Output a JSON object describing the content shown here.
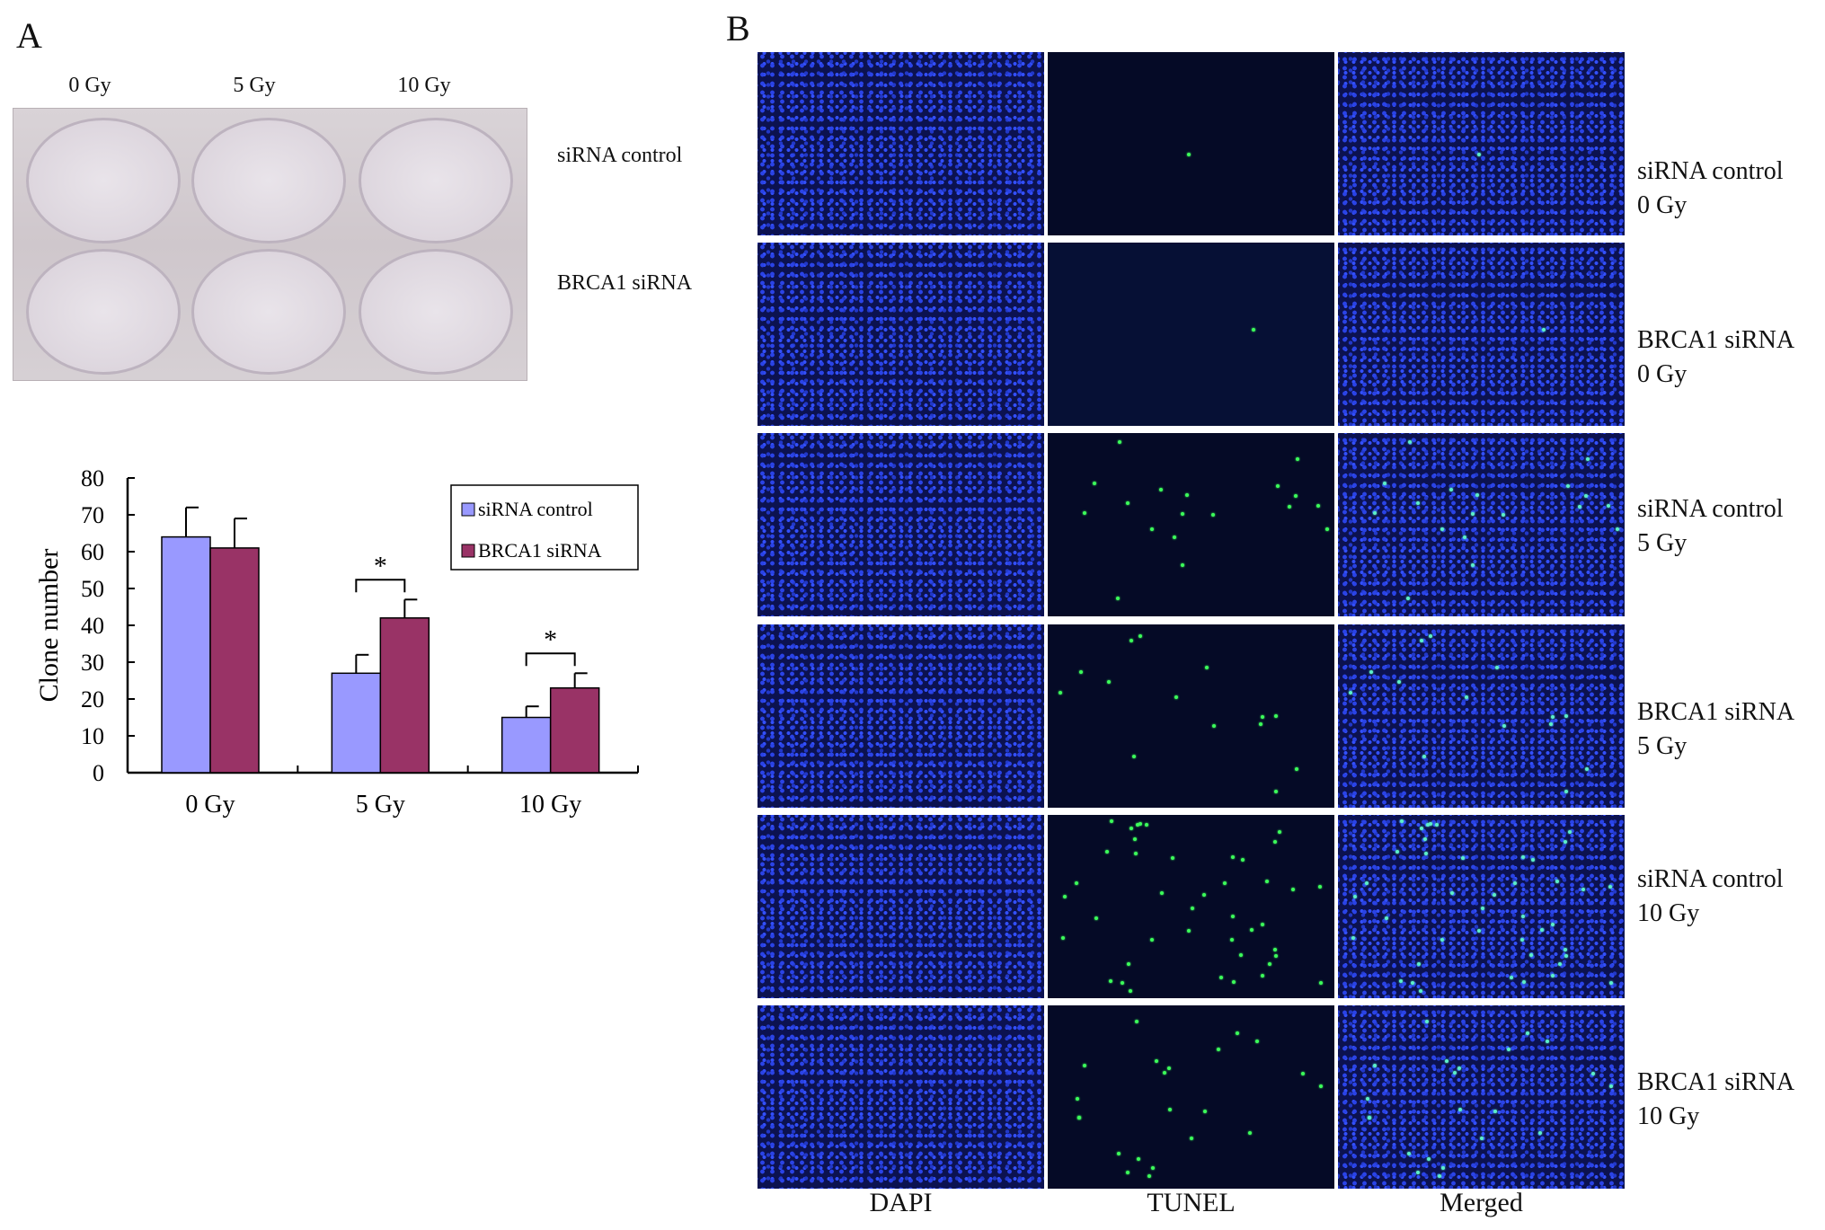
{
  "panel_a": {
    "letter": "A",
    "plate_column_labels": [
      "0 Gy",
      "5 Gy",
      "10 Gy"
    ],
    "plate_row_labels": [
      "siRNA control",
      "BRCA1 siRNA"
    ]
  },
  "panel_b": {
    "letter": "B",
    "column_labels": [
      "DAPI",
      "TUNEL",
      "Merged"
    ],
    "rows": [
      {
        "line1": "siRNA control",
        "line2": "0 Gy"
      },
      {
        "line1": "BRCA1 siRNA",
        "line2": "0 Gy"
      },
      {
        "line1": "siRNA control",
        "line2": "5 Gy"
      },
      {
        "line1": "BRCA1 siRNA",
        "line2": "5 Gy"
      },
      {
        "line1": "siRNA control",
        "line2": "10 Gy"
      },
      {
        "line1": "BRCA1 siRNA",
        "line2": "10 Gy"
      }
    ]
  },
  "chart_data": {
    "type": "bar",
    "categories": [
      "0 Gy",
      "5 Gy",
      "10 Gy"
    ],
    "series": [
      {
        "name": "siRNA control",
        "values": [
          64,
          27,
          15
        ],
        "errors": [
          8,
          5,
          3
        ],
        "color": "#9999ff"
      },
      {
        "name": "BRCA1 siRNA",
        "values": [
          61,
          42,
          23
        ],
        "errors": [
          8,
          5,
          4
        ],
        "color": "#993366"
      }
    ],
    "ylabel": "Clone number",
    "ylim": [
      0,
      80
    ],
    "yticks": [
      0,
      10,
      20,
      30,
      40,
      50,
      60,
      70,
      80
    ],
    "significance": [
      {
        "category_index": 1,
        "label": "*"
      },
      {
        "category_index": 2,
        "label": "*"
      }
    ],
    "legend_position": "top-right",
    "grid": false
  }
}
